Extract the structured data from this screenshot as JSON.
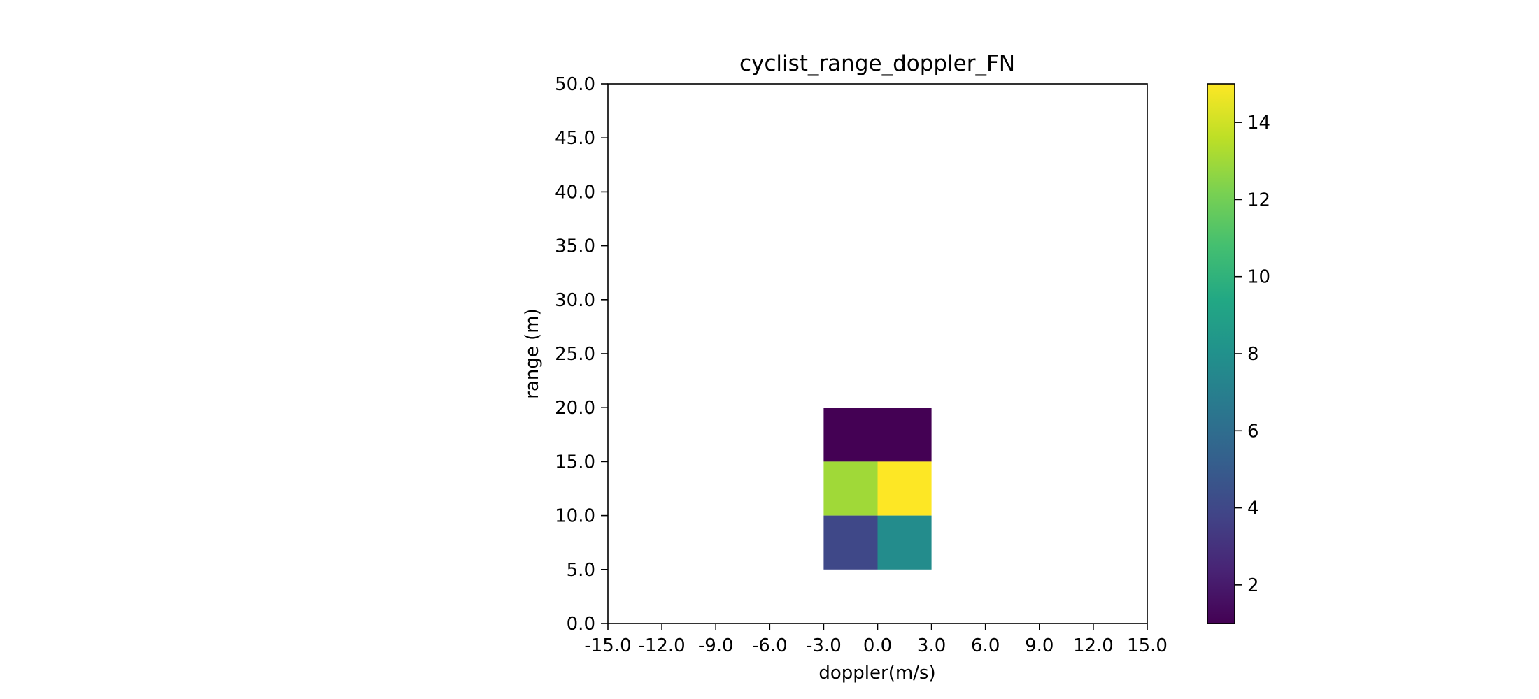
{
  "chart_data": {
    "type": "heatmap",
    "title": "cyclist_range_doppler_FN",
    "xlabel": "doppler(m/s)",
    "ylabel": "range (m)",
    "xlim": [
      -15.0,
      15.0
    ],
    "ylim": [
      0.0,
      50.0
    ],
    "x_ticks": [
      "-15.0",
      "-12.0",
      "-9.0",
      "-6.0",
      "-3.0",
      "0.0",
      "3.0",
      "6.0",
      "9.0",
      "12.0",
      "15.0"
    ],
    "x_tick_values": [
      -15,
      -12,
      -9,
      -6,
      -3,
      0,
      3,
      6,
      9,
      12,
      15
    ],
    "y_ticks": [
      "0.0",
      "5.0",
      "10.0",
      "15.0",
      "20.0",
      "25.0",
      "30.0",
      "35.0",
      "40.0",
      "45.0",
      "50.0"
    ],
    "y_tick_values": [
      0,
      5,
      10,
      15,
      20,
      25,
      30,
      35,
      40,
      45,
      50
    ],
    "cells": [
      {
        "x0": -3,
        "x1": 0,
        "y0": 15,
        "y1": 20,
        "value": 1
      },
      {
        "x0": 0,
        "x1": 3,
        "y0": 15,
        "y1": 20,
        "value": 1
      },
      {
        "x0": -3,
        "x1": 0,
        "y0": 10,
        "y1": 15,
        "value": 13
      },
      {
        "x0": 0,
        "x1": 3,
        "y0": 10,
        "y1": 15,
        "value": 15
      },
      {
        "x0": -3,
        "x1": 0,
        "y0": 5,
        "y1": 10,
        "value": 4
      },
      {
        "x0": 0,
        "x1": 3,
        "y0": 5,
        "y1": 10,
        "value": 7.7
      }
    ],
    "colorbar": {
      "colormap": "viridis",
      "vmin": 1,
      "vmax": 15,
      "ticks": [
        "2",
        "4",
        "6",
        "8",
        "10",
        "12",
        "14"
      ],
      "tick_values": [
        2,
        4,
        6,
        8,
        10,
        12,
        14
      ]
    },
    "grid": false,
    "background": "#ffffff"
  }
}
